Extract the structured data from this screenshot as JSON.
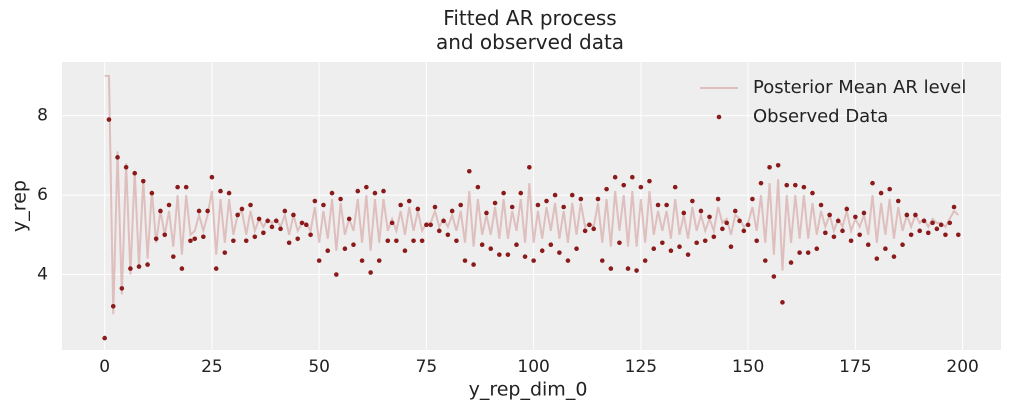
{
  "chart_data": {
    "type": "line",
    "title": "Fitted AR process\nand observed data",
    "xlabel": "y_rep_dim_0",
    "ylabel": "y_rep",
    "xlim": [
      -9.95,
      208.95
    ],
    "ylim": [
      2.1,
      9.35
    ],
    "xticks": [
      0,
      25,
      50,
      75,
      100,
      125,
      150,
      175,
      200
    ],
    "yticks": [
      4,
      6,
      8
    ],
    "grid": true,
    "legend": "upper right",
    "x": [
      0,
      1,
      2,
      3,
      4,
      5,
      6,
      7,
      8,
      9,
      10,
      11,
      12,
      13,
      14,
      15,
      16,
      17,
      18,
      19,
      20,
      21,
      22,
      23,
      24,
      25,
      26,
      27,
      28,
      29,
      30,
      31,
      32,
      33,
      34,
      35,
      36,
      37,
      38,
      39,
      40,
      41,
      42,
      43,
      44,
      45,
      46,
      47,
      48,
      49,
      50,
      51,
      52,
      53,
      54,
      55,
      56,
      57,
      58,
      59,
      60,
      61,
      62,
      63,
      64,
      65,
      66,
      67,
      68,
      69,
      70,
      71,
      72,
      73,
      74,
      75,
      76,
      77,
      78,
      79,
      80,
      81,
      82,
      83,
      84,
      85,
      86,
      87,
      88,
      89,
      90,
      91,
      92,
      93,
      94,
      95,
      96,
      97,
      98,
      99,
      100,
      101,
      102,
      103,
      104,
      105,
      106,
      107,
      108,
      109,
      110,
      111,
      112,
      113,
      114,
      115,
      116,
      117,
      118,
      119,
      120,
      121,
      122,
      123,
      124,
      125,
      126,
      127,
      128,
      129,
      130,
      131,
      132,
      133,
      134,
      135,
      136,
      137,
      138,
      139,
      140,
      141,
      142,
      143,
      144,
      145,
      146,
      147,
      148,
      149,
      150,
      151,
      152,
      153,
      154,
      155,
      156,
      157,
      158,
      159,
      160,
      161,
      162,
      163,
      164,
      165,
      166,
      167,
      168,
      169,
      170,
      171,
      172,
      173,
      174,
      175,
      176,
      177,
      178,
      179,
      180,
      181,
      182,
      183,
      184,
      185,
      186,
      187,
      188,
      189,
      190,
      191,
      192,
      193,
      194,
      195,
      196,
      197,
      198,
      199
    ],
    "series": [
      {
        "name": "Posterior Mean AR level",
        "type": "line",
        "color": "#d9a9a9",
        "values": [
          9.0,
          9.0,
          3.0,
          7.1,
          3.5,
          6.8,
          4.0,
          6.6,
          4.2,
          6.4,
          4.4,
          6.1,
          4.8,
          5.6,
          5.0,
          5.6,
          4.7,
          6.0,
          4.5,
          6.0,
          5.0,
          5.1,
          5.5,
          5.1,
          5.5,
          6.1,
          4.5,
          5.9,
          4.8,
          5.9,
          5.0,
          5.5,
          5.6,
          5.0,
          5.6,
          5.1,
          5.4,
          5.2,
          5.4,
          5.3,
          5.4,
          5.2,
          5.5,
          5.0,
          5.5,
          5.1,
          5.3,
          5.3,
          5.1,
          5.7,
          4.8,
          5.6,
          4.9,
          5.9,
          4.6,
          5.8,
          5.0,
          5.4,
          5.1,
          5.9,
          4.8,
          6.0,
          4.6,
          5.9,
          4.8,
          5.9,
          5.1,
          5.4,
          5.1,
          5.6,
          5.0,
          5.7,
          5.1,
          5.6,
          5.1,
          5.3,
          5.3,
          5.6,
          5.2,
          5.4,
          5.2,
          5.5,
          5.1,
          5.6,
          4.8,
          6.1,
          4.7,
          5.9,
          5.0,
          5.5,
          5.0,
          5.7,
          4.9,
          5.9,
          4.9,
          5.6,
          5.1,
          5.9,
          4.8,
          6.3,
          4.8,
          5.6,
          4.9,
          5.7,
          5.1,
          5.8,
          4.9,
          5.6,
          4.8,
          5.8,
          5.0,
          5.8,
          5.2,
          5.3,
          5.2,
          5.8,
          4.8,
          5.9,
          4.7,
          6.1,
          5.1,
          6.0,
          4.7,
          6.1,
          4.7,
          5.9,
          4.8,
          6.1,
          5.0,
          5.6,
          5.1,
          5.6,
          4.9,
          5.9,
          5.0,
          5.5,
          4.9,
          5.7,
          5.1,
          5.5,
          5.1,
          5.4,
          5.1,
          5.7,
          5.3,
          5.4,
          5.0,
          5.5,
          5.4,
          5.2,
          5.3,
          5.7,
          5.1,
          6.0,
          4.8,
          6.3,
          4.5,
          6.4,
          4.1,
          6.0,
          4.8,
          6.0,
          4.9,
          6.0,
          4.9,
          5.8,
          5.0,
          5.6,
          5.2,
          5.5,
          5.1,
          5.4,
          5.2,
          5.6,
          5.1,
          5.4,
          5.2,
          5.5,
          5.0,
          6.0,
          4.8,
          5.8,
          5.0,
          5.9,
          4.9,
          5.7,
          5.1,
          5.5,
          5.2,
          5.5,
          5.3,
          5.4,
          5.2,
          5.4,
          5.3,
          5.3,
          5.2,
          5.4,
          5.6,
          5.5
        ]
      },
      {
        "name": "Observed Data",
        "type": "scatter",
        "color": "#8b1a1a",
        "values": [
          2.4,
          7.9,
          3.2,
          6.95,
          3.65,
          6.7,
          4.15,
          6.55,
          4.2,
          6.35,
          4.25,
          6.05,
          4.9,
          5.6,
          5.0,
          5.75,
          4.45,
          6.2,
          4.15,
          6.2,
          4.85,
          4.9,
          5.6,
          4.95,
          5.6,
          6.45,
          4.15,
          6.1,
          4.55,
          6.05,
          4.85,
          5.5,
          5.65,
          4.85,
          5.75,
          4.95,
          5.4,
          5.05,
          5.35,
          5.2,
          5.35,
          5.15,
          5.6,
          4.8,
          5.5,
          4.9,
          5.3,
          5.25,
          5.0,
          5.85,
          4.35,
          5.75,
          4.6,
          6.05,
          4.0,
          5.9,
          4.65,
          5.4,
          4.75,
          6.1,
          4.35,
          6.2,
          4.05,
          6.05,
          4.35,
          6.1,
          4.85,
          5.3,
          4.85,
          5.75,
          4.6,
          5.85,
          4.85,
          5.65,
          4.85,
          5.25,
          5.25,
          5.7,
          5.1,
          5.35,
          5.0,
          5.6,
          4.85,
          5.75,
          4.35,
          6.6,
          4.25,
          6.2,
          4.75,
          5.55,
          4.65,
          5.8,
          4.5,
          6.05,
          4.5,
          5.7,
          4.75,
          6.05,
          4.45,
          6.7,
          4.35,
          5.75,
          4.6,
          5.85,
          4.75,
          6.0,
          4.55,
          5.7,
          4.35,
          6.0,
          4.65,
          5.9,
          5.1,
          5.25,
          5.15,
          5.9,
          4.35,
          6.15,
          4.15,
          6.45,
          4.8,
          6.25,
          4.15,
          6.45,
          4.1,
          6.2,
          4.35,
          6.35,
          4.65,
          5.75,
          4.8,
          5.75,
          4.6,
          6.2,
          4.7,
          5.55,
          4.5,
          5.85,
          4.8,
          5.6,
          4.85,
          5.45,
          4.95,
          5.9,
          5.15,
          5.3,
          4.7,
          5.6,
          5.35,
          5.1,
          5.25,
          5.9,
          4.85,
          6.3,
          4.35,
          6.7,
          3.95,
          6.75,
          3.3,
          6.25,
          4.3,
          6.25,
          4.55,
          6.2,
          4.55,
          6.05,
          4.65,
          5.75,
          5.05,
          5.5,
          4.95,
          5.35,
          5.1,
          5.65,
          4.85,
          5.45,
          5.0,
          5.55,
          4.75,
          6.3,
          4.4,
          6.05,
          4.65,
          6.15,
          4.45,
          5.85,
          4.75,
          5.5,
          5.0,
          5.5,
          5.1,
          5.35,
          5.05,
          5.3,
          5.15,
          5.25,
          5.0,
          5.3,
          5.7,
          5.0
        ]
      }
    ]
  }
}
